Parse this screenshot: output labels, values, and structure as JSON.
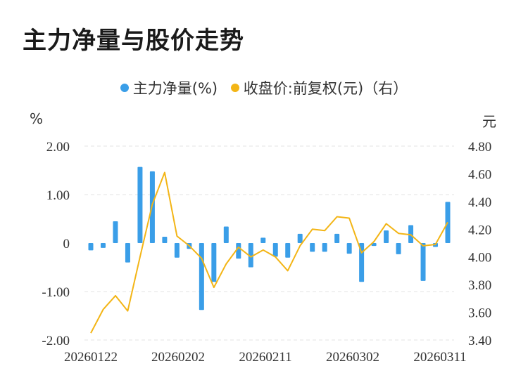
{
  "title": "主力净量与股价走势",
  "colors": {
    "bar": "#3a9ee8",
    "line": "#f3b516",
    "grid": "#e3e3e3"
  },
  "chart_data": {
    "type": "bar+line",
    "title": "主力净量与股价走势",
    "legend": [
      "主力净量(%)",
      "收盘价:前复权(元)（右）"
    ],
    "left_unit": "%",
    "right_unit": "元",
    "left_ylim": [
      -2,
      2
    ],
    "right_ylim": [
      3.4,
      4.8
    ],
    "left_ticks": [
      "2.00",
      "1.00",
      "0",
      "-1.00",
      "-2.00"
    ],
    "right_ticks": [
      "4.80",
      "4.60",
      "4.40",
      "4.20",
      "4.00",
      "3.80",
      "3.60",
      "3.40"
    ],
    "x_tick_labels": [
      "20260122",
      "20260202",
      "20260211",
      "20260302",
      "20260311"
    ],
    "series": [
      {
        "name": "主力净量(%)",
        "type": "bar",
        "axis": "left",
        "values": [
          -0.15,
          -0.1,
          0.45,
          -0.4,
          1.57,
          1.48,
          0.13,
          -0.3,
          -0.12,
          -1.38,
          -0.8,
          0.34,
          -0.32,
          -0.5,
          0.11,
          -0.28,
          -0.3,
          0.19,
          -0.18,
          -0.18,
          0.19,
          -0.22,
          -0.8,
          -0.06,
          0.26,
          -0.23,
          0.37,
          -0.78,
          -0.08,
          0.85
        ]
      },
      {
        "name": "收盘价:前复权(元)（右）",
        "type": "line",
        "axis": "right",
        "values": [
          3.45,
          3.62,
          3.72,
          3.61,
          4.0,
          4.38,
          4.61,
          4.15,
          4.08,
          3.99,
          3.78,
          3.95,
          4.07,
          4.0,
          4.05,
          4.0,
          3.9,
          4.08,
          4.2,
          4.19,
          4.29,
          4.28,
          4.03,
          4.11,
          4.24,
          4.17,
          4.16,
          4.08,
          4.09,
          4.25
        ]
      }
    ]
  }
}
